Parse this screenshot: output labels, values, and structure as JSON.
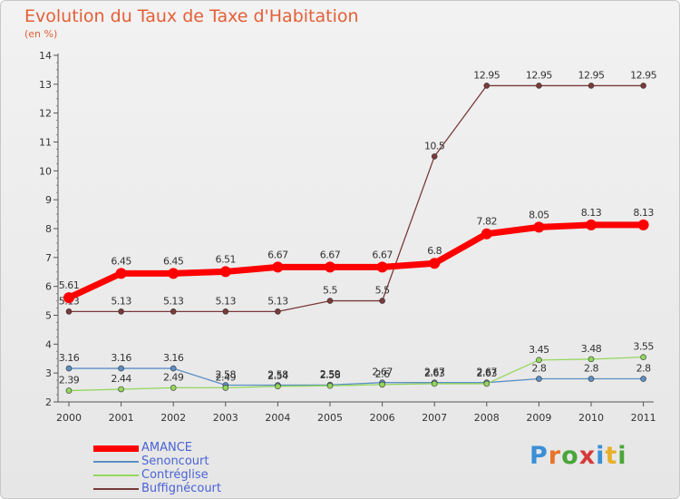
{
  "header": {
    "title": "Evolution du Taux de Taxe d'Habitation",
    "subtitle": "(en %)"
  },
  "logo": {
    "text": "Proxiti",
    "letter_colors": [
      "#3a8fd6",
      "#e8732a",
      "#4aa63a",
      "#d63a3a",
      "#3a8fd6",
      "#e8b02a",
      "#4aa63a"
    ]
  },
  "colors": {
    "AMANCE": "#ff0000",
    "Senoncourt": "#5b8fc5",
    "Contréglise": "#94d75c",
    "Buffignécourt": "#7a3a3a",
    "title": "#e35f37",
    "legend_text": "#4a63d4"
  },
  "chart_data": {
    "type": "line",
    "title": "Evolution du Taux de Taxe d'Habitation",
    "subtitle": "(en %)",
    "xlabel": "",
    "ylabel": "",
    "x": [
      "2000",
      "2001",
      "2002",
      "2003",
      "2004",
      "2005",
      "2006",
      "2007",
      "2008",
      "2009",
      "2010",
      "2011"
    ],
    "ylim": [
      2,
      14
    ],
    "yticks": [
      "2",
      "3",
      "4",
      "5",
      "6",
      "7",
      "8",
      "9",
      "10",
      "11",
      "12",
      "13",
      "14"
    ],
    "grid": false,
    "legend_position": "bottom-left",
    "series": [
      {
        "name": "AMANCE",
        "values": [
          5.61,
          6.45,
          6.45,
          6.51,
          6.67,
          6.67,
          6.67,
          6.8,
          7.82,
          8.05,
          8.13,
          8.13
        ],
        "labels": [
          "5.61",
          "6.45",
          "6.45",
          "6.51",
          "6.67",
          "6.67",
          "6.67",
          "6.8",
          "7.82",
          "8.05",
          "8.13",
          "8.13"
        ]
      },
      {
        "name": "Senoncourt",
        "values": [
          3.16,
          3.16,
          3.16,
          2.58,
          2.58,
          2.59,
          2.67,
          2.67,
          2.67,
          2.8,
          2.8,
          2.8
        ],
        "labels": [
          "3.16",
          "3.16",
          "3.16",
          "2.58",
          "2.58",
          "2.59",
          "2.67",
          "2.67",
          "2.67",
          "2.8",
          "2.8",
          "2.8"
        ]
      },
      {
        "name": "Contréglise",
        "values": [
          2.39,
          2.44,
          2.49,
          2.49,
          2.54,
          2.56,
          2.6,
          2.63,
          2.63,
          3.45,
          3.48,
          3.55
        ],
        "labels": [
          "2.39",
          "2.44",
          "2.49",
          "2.49",
          "2.54",
          "2.56",
          "2.6",
          "2.63",
          "2.63",
          "3.45",
          "3.48",
          "3.55"
        ]
      },
      {
        "name": "Buffignécourt",
        "values": [
          5.13,
          5.13,
          5.13,
          5.13,
          5.13,
          5.5,
          5.5,
          10.5,
          12.95,
          12.95,
          12.95,
          12.95
        ],
        "labels": [
          "5.13",
          "5.13",
          "5.13",
          "5.13",
          "5.13",
          "5.5",
          "5.5",
          "10.5",
          "12.95",
          "12.95",
          "12.95",
          "12.95"
        ]
      }
    ]
  }
}
